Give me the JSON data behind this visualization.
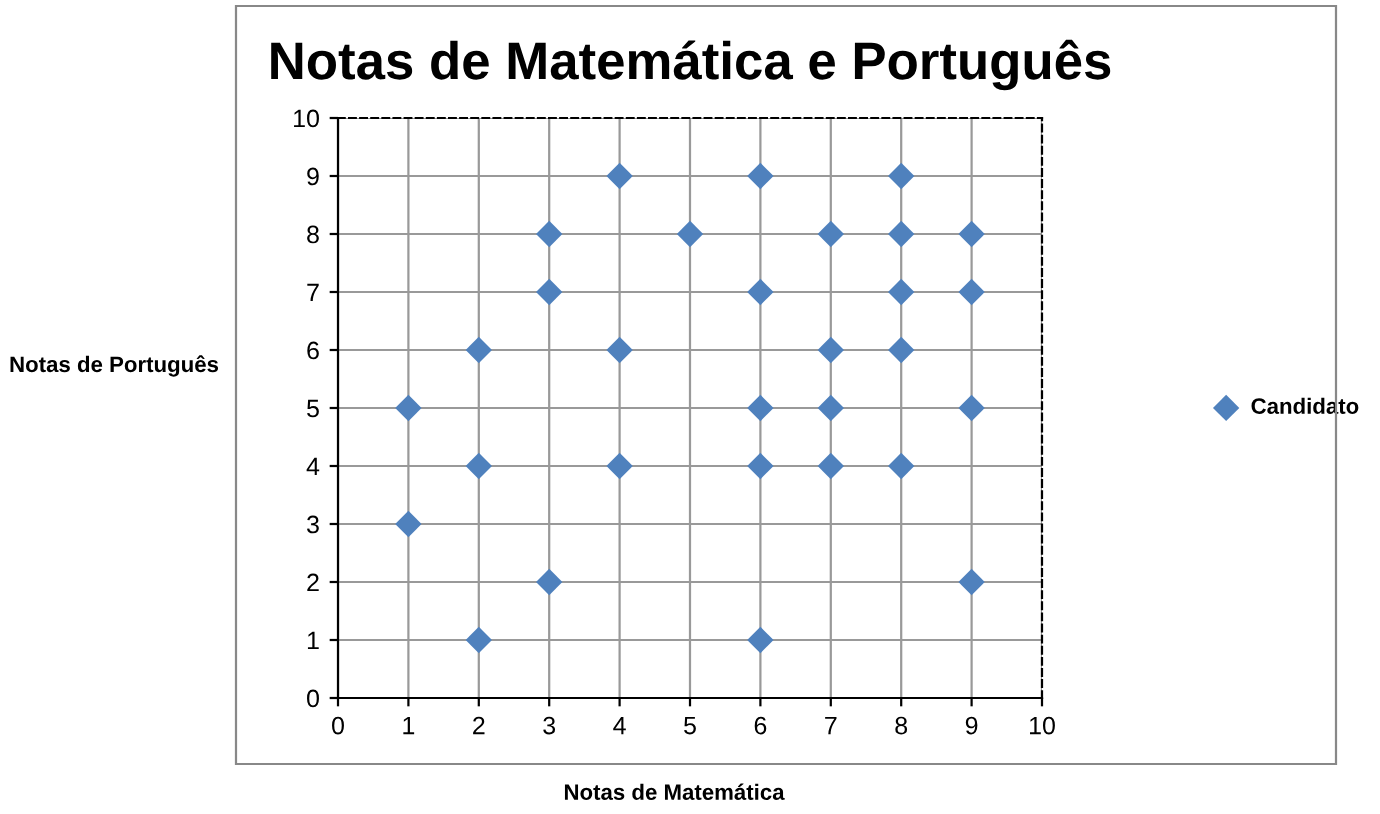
{
  "chart_data": {
    "type": "scatter",
    "title": "Notas de Matemática e Português",
    "xlabel": "Notas de Matemática",
    "ylabel": "Notas de Português",
    "series": [
      {
        "name": "Candidato",
        "color": "#4f81bd",
        "x": [
          1,
          1,
          2,
          2,
          2,
          3,
          3,
          3,
          4,
          4,
          4,
          5,
          6,
          6,
          6,
          6,
          6,
          7,
          7,
          7,
          7,
          8,
          8,
          8,
          8,
          8,
          9,
          9,
          9,
          9
        ],
        "values": [
          5,
          3,
          6,
          4,
          1,
          8,
          7,
          2,
          9,
          6,
          4,
          8,
          9,
          7,
          5,
          4,
          1,
          8,
          6,
          5,
          4,
          9,
          8,
          7,
          6,
          4,
          8,
          7,
          5,
          2
        ]
      }
    ],
    "xlim": [
      0,
      10
    ],
    "ylim": [
      0,
      10
    ],
    "xticks": [
      0,
      1,
      2,
      3,
      4,
      5,
      6,
      7,
      8,
      9,
      10
    ],
    "yticks": [
      0,
      1,
      2,
      3,
      4,
      5,
      6,
      7,
      8,
      9,
      10
    ],
    "grid": true,
    "legend": "right",
    "marker": "diamond"
  }
}
